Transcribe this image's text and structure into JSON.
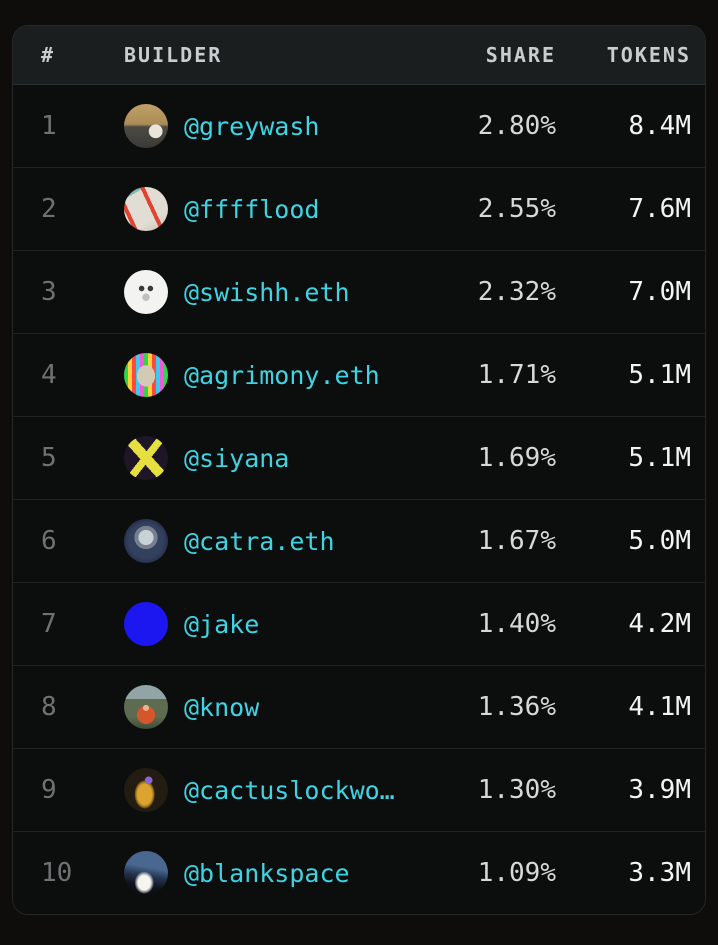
{
  "colors": {
    "page_bg": "#0e0d0c",
    "card_bg": "#0c0d0d",
    "header_bg": "#1b1e1f",
    "header_text": "#c9cdce",
    "rank_text": "#6e7273",
    "username_accent": "#3fd4e4",
    "share_text": "#d6d9d9",
    "tokens_text": "#f2f4f4",
    "divider": "#222424"
  },
  "table": {
    "columns": {
      "rank": "#",
      "builder": "BUILDER",
      "share": "SHARE",
      "tokens": "TOKENS"
    },
    "rows": [
      {
        "rank": "1",
        "builder": "@greywash",
        "share": "2.80%",
        "tokens": "8.4M",
        "avatar_icon": "greywash-avatar",
        "avatar_style": "background: radial-gradient(circle at 72% 62%, #e9e5db 0 16%, rgba(0,0,0,0) 17%), linear-gradient(180deg, #c0a167 0%, #ab8c58 46%, #4c4a42 52%, #3b3a37 100%)"
      },
      {
        "rank": "2",
        "builder": "@fffflood",
        "share": "2.55%",
        "tokens": "7.6M",
        "avatar_icon": "fffflood-avatar",
        "avatar_style": "background: repeating-linear-gradient(65deg, rgba(0,0,0,0) 0 9px, #e04330 9px 13px, rgba(0,0,0,0) 13px 24px), linear-gradient(150deg, #8fb6ae 0 18%, #e2ddd4 18% 70%, #c9c2b8 100%)"
      },
      {
        "rank": "3",
        "builder": "@swishh.eth",
        "share": "2.32%",
        "tokens": "7.0M",
        "avatar_icon": "swishh-avatar",
        "avatar_style": "background: radial-gradient(circle at 40% 42%, #3a3a3a 0 7%, rgba(0,0,0,0) 8%), radial-gradient(circle at 60% 42%, #3a3a3a 0 7%, rgba(0,0,0,0) 8%), radial-gradient(circle at 50% 62%, #bfbfbc 0 10%, rgba(0,0,0,0) 11%), #f3f3f1"
      },
      {
        "rank": "4",
        "builder": "@agrimony.eth",
        "share": "1.71%",
        "tokens": "5.1M",
        "avatar_icon": "agrimony-avatar",
        "avatar_style": "background: radial-gradient(ellipse 34% 40% at 50% 52%, #d4c9b4 0 60%, rgba(0,0,0,0) 61%), repeating-linear-gradient(90deg, #35d14f 0 4px, #ffd23a 4px 8px, #ff4a3e 8px 12px, #3ec9f5 12px 16px, #f05bd4 16px 20px)"
      },
      {
        "rank": "5",
        "builder": "@siyana",
        "share": "1.69%",
        "tokens": "5.1M",
        "avatar_icon": "siyana-avatar",
        "avatar_style": "background: linear-gradient(48deg, rgba(0,0,0,0) 0 42%, #e6df3e 42% 58%, rgba(0,0,0,0) 58%), linear-gradient(-52deg, rgba(0,0,0,0) 0 44%, #e6df3e 44% 56%, rgba(0,0,0,0) 56%), #1e1527"
      },
      {
        "rank": "6",
        "builder": "@catra.eth",
        "share": "1.67%",
        "tokens": "5.0M",
        "avatar_icon": "catra-avatar",
        "avatar_style": "background: radial-gradient(circle at 50% 42%, #c8d0d8 0 22%, #77808e 23% 34%, rgba(0,0,0,0) 35%), radial-gradient(circle at 50% 50%, #33405e 0 55%, #131a2c 100%)"
      },
      {
        "rank": "7",
        "builder": "@jake",
        "share": "1.40%",
        "tokens": "4.2M",
        "avatar_icon": "jake-avatar",
        "avatar_style": "background: #1c16f0"
      },
      {
        "rank": "8",
        "builder": "@know",
        "share": "1.36%",
        "tokens": "4.1M",
        "avatar_icon": "know-avatar",
        "avatar_style": "background: radial-gradient(circle at 50% 52%, #e8b48a 0 9%, rgba(0,0,0,0) 10%), radial-gradient(circle at 50% 68%, #d4562b 0 24%, rgba(0,0,0,0) 25%), linear-gradient(180deg, #93a4a6 0 32%, #5d6b50 32% 72%, #3f4c39 100%)"
      },
      {
        "rank": "9",
        "builder": "@cactuslockwo…",
        "share": "1.30%",
        "tokens": "3.9M",
        "avatar_icon": "cactuslockwood-avatar",
        "avatar_style": "background: radial-gradient(circle at 56% 28%, #8a63d6 0 9%, rgba(0,0,0,0) 10%), radial-gradient(ellipse 30% 42% at 47% 60%, #dda32f 0 55%, #8a6418 70%, rgba(0,0,0,0) 78%), radial-gradient(circle, #221c13 0 70%, #161009 100%)"
      },
      {
        "rank": "10",
        "builder": "@blankspace",
        "share": "1.09%",
        "tokens": "3.3M",
        "avatar_icon": "blankspace-avatar",
        "avatar_style": "background: radial-gradient(ellipse 26% 30% at 46% 72%, #f6f4ef 0 55%, rgba(246,244,239,0.4) 75%, rgba(0,0,0,0) 85%), linear-gradient(190deg, #49678f 0 38%, #243652 55%, #10131c 75%, #0b0a10 100%)"
      }
    ]
  }
}
